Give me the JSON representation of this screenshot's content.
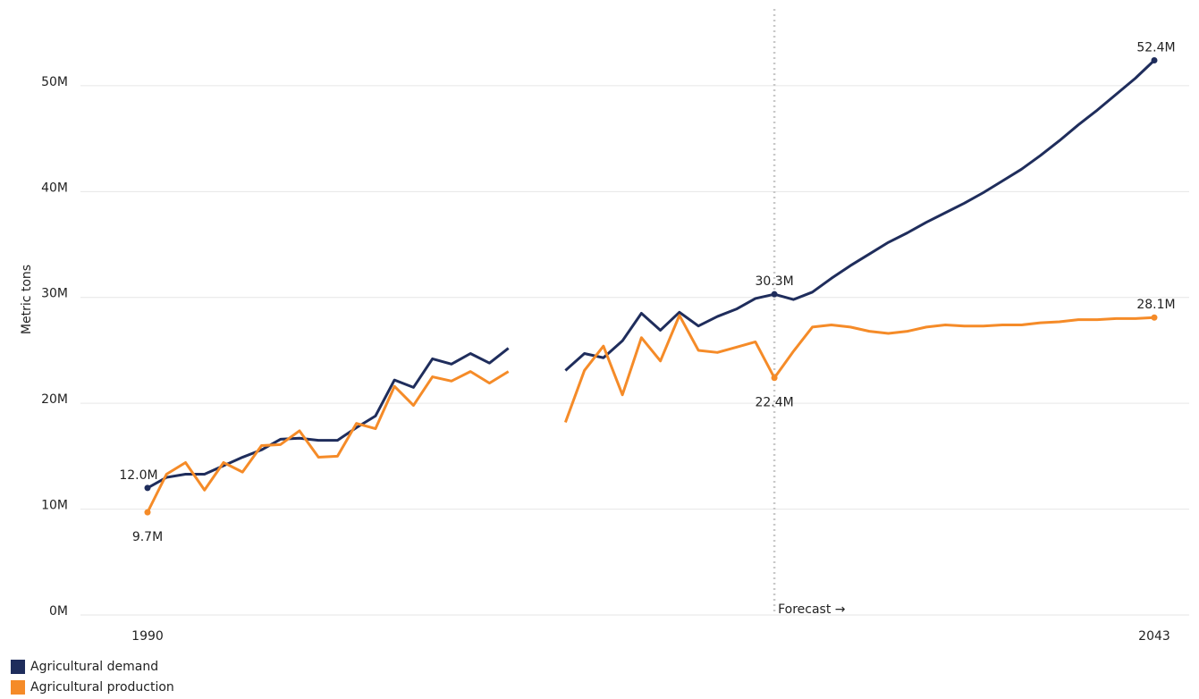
{
  "chart_data": {
    "type": "line",
    "ylabel": "Metric tons",
    "x": [
      1990,
      1991,
      1992,
      1993,
      1994,
      1995,
      1996,
      1997,
      1998,
      1999,
      2000,
      2001,
      2002,
      2003,
      2004,
      2005,
      2006,
      2007,
      2008,
      2009,
      2010,
      2011,
      2012,
      2013,
      2014,
      2015,
      2016,
      2017,
      2018,
      2019,
      2020,
      2021,
      2022,
      2023,
      2024,
      2025,
      2026,
      2027,
      2028,
      2029,
      2030,
      2031,
      2032,
      2033,
      2034,
      2035,
      2036,
      2037,
      2038,
      2039,
      2040,
      2041,
      2042,
      2043
    ],
    "series": [
      {
        "name": "Agricultural demand",
        "color": "#1f2d5c",
        "values": [
          12.0,
          13.0,
          13.3,
          13.3,
          14.1,
          14.9,
          15.6,
          16.6,
          16.7,
          16.5,
          16.5,
          17.7,
          18.8,
          22.2,
          21.5,
          24.2,
          23.7,
          24.7,
          23.8,
          25.2,
          null,
          null,
          23.1,
          24.7,
          24.3,
          25.9,
          28.5,
          26.9,
          28.6,
          27.3,
          28.2,
          28.9,
          29.9,
          30.3,
          29.8,
          30.5,
          31.8,
          33.0,
          34.1,
          35.2,
          36.1,
          37.1,
          38.0,
          38.9,
          39.9,
          41.0,
          42.1,
          43.4,
          44.8,
          46.3,
          47.7,
          49.2,
          50.7,
          52.4
        ],
        "value_labels": [
          "12.0M",
          null,
          null,
          null,
          null,
          null,
          null,
          null,
          null,
          null,
          null,
          null,
          null,
          null,
          null,
          null,
          null,
          null,
          null,
          null,
          null,
          null,
          null,
          null,
          null,
          null,
          null,
          null,
          null,
          null,
          null,
          null,
          null,
          "30.3M",
          null,
          null,
          null,
          null,
          null,
          null,
          null,
          null,
          null,
          null,
          null,
          null,
          null,
          null,
          null,
          null,
          null,
          null,
          null,
          "52.4M"
        ]
      },
      {
        "name": "Agricultural production",
        "color": "#f58b28",
        "values": [
          9.7,
          13.3,
          14.4,
          11.8,
          14.4,
          13.5,
          16.0,
          16.1,
          17.4,
          14.9,
          15.0,
          18.1,
          17.6,
          21.6,
          19.8,
          22.5,
          22.1,
          23.0,
          21.9,
          23.0,
          null,
          null,
          18.2,
          23.1,
          25.4,
          20.8,
          26.2,
          24.0,
          28.3,
          25.0,
          24.8,
          25.3,
          25.8,
          22.4,
          24.9,
          27.2,
          27.4,
          27.2,
          26.8,
          26.6,
          26.8,
          27.2,
          27.4,
          27.3,
          27.3,
          27.4,
          27.4,
          27.6,
          27.7,
          27.9,
          27.9,
          28.0,
          28.0,
          28.1
        ],
        "value_labels": [
          "9.7M",
          null,
          null,
          null,
          null,
          null,
          null,
          null,
          null,
          null,
          null,
          null,
          null,
          null,
          null,
          null,
          null,
          null,
          null,
          null,
          null,
          null,
          null,
          null,
          null,
          null,
          null,
          null,
          null,
          null,
          null,
          null,
          null,
          "22.4M",
          null,
          null,
          null,
          null,
          null,
          null,
          null,
          null,
          null,
          null,
          null,
          null,
          null,
          null,
          null,
          null,
          null,
          null,
          null,
          "28.1M"
        ]
      }
    ],
    "xlim": [
      1990,
      2043
    ],
    "xticks": [
      1990,
      2043
    ],
    "ylim": [
      0,
      57
    ],
    "yticks": [
      {
        "value": 0,
        "label": "0M"
      },
      {
        "value": 10,
        "label": "10M"
      },
      {
        "value": 20,
        "label": "20M"
      },
      {
        "value": 30,
        "label": "30M"
      },
      {
        "value": 40,
        "label": "40M"
      },
      {
        "value": 50,
        "label": "50M"
      }
    ],
    "grid": true,
    "legend": "bottom-left",
    "forecast": {
      "x": 2023,
      "label": "Forecast →"
    }
  }
}
